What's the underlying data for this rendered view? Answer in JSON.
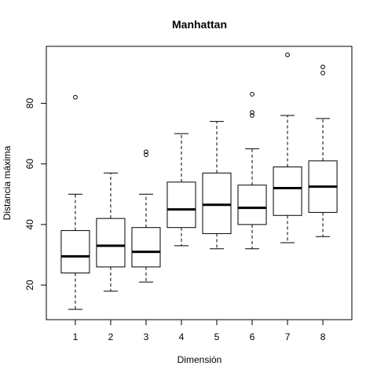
{
  "chart_data": {
    "type": "boxplot",
    "title": "Manhattan",
    "xlabel": "Dimensión",
    "ylabel": "Distancia máxima",
    "categories": [
      "1",
      "2",
      "3",
      "4",
      "5",
      "6",
      "7",
      "8"
    ],
    "ylim": [
      8.6,
      98.8
    ],
    "yticks": [
      20,
      40,
      60,
      80
    ],
    "yticklabels": [
      "20",
      "40",
      "60",
      "80"
    ],
    "grid": false,
    "boxes": [
      {
        "category": "1",
        "whisker_low": 12,
        "q1": 24,
        "median": 29.5,
        "q3": 38,
        "whisker_high": 50,
        "outliers": [
          82
        ]
      },
      {
        "category": "2",
        "whisker_low": 18,
        "q1": 26,
        "median": 33,
        "q3": 42,
        "whisker_high": 57,
        "outliers": []
      },
      {
        "category": "3",
        "whisker_low": 21,
        "q1": 26,
        "median": 31,
        "q3": 39,
        "whisker_high": 50,
        "outliers": [
          63,
          64
        ]
      },
      {
        "category": "4",
        "whisker_low": 33,
        "q1": 39,
        "median": 45,
        "q3": 54,
        "whisker_high": 70,
        "outliers": []
      },
      {
        "category": "5",
        "whisker_low": 32,
        "q1": 37,
        "median": 46.5,
        "q3": 57,
        "whisker_high": 74,
        "outliers": []
      },
      {
        "category": "6",
        "whisker_low": 32,
        "q1": 40,
        "median": 45.5,
        "q3": 53,
        "whisker_high": 65,
        "outliers": [
          76,
          77,
          83
        ]
      },
      {
        "category": "7",
        "whisker_low": 34,
        "q1": 43,
        "median": 52,
        "q3": 59,
        "whisker_high": 76,
        "outliers": [
          96
        ]
      },
      {
        "category": "8",
        "whisker_low": 36,
        "q1": 44,
        "median": 52.5,
        "q3": 61,
        "whisker_high": 75,
        "outliers": [
          90,
          92
        ]
      }
    ],
    "colors": {
      "stroke": "#000000",
      "fill": "#ffffff"
    }
  }
}
